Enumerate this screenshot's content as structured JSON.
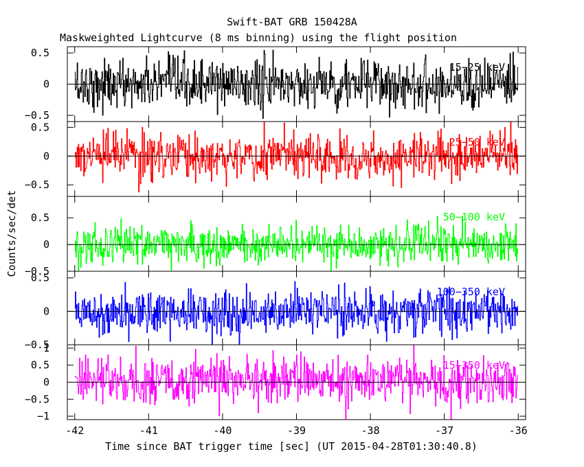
{
  "chart_data": {
    "type": "line",
    "title": "Swift-BAT GRB 150428A",
    "subtitle": "Maskweighted Lightcurve (8 ms binning) using the flight position",
    "xlabel": "Time since BAT trigger time [sec] (UT 2015-04-28T01:30:40.8)",
    "ylabel": "Counts/sec/det",
    "xlim": [
      -42.1,
      -35.9
    ],
    "x_ticks": [
      -42,
      -41,
      -40,
      -39,
      -38,
      -37,
      -36
    ],
    "x_tick_labels": [
      "-42",
      "-41",
      "-40",
      "-39",
      "-38",
      "-37",
      "-36"
    ],
    "bin_width_sec": 0.008,
    "x_start": -42.0,
    "x_end": -36.0,
    "panels": [
      {
        "name": "15-25 keV",
        "label": "15−25 keV",
        "color": "#000000",
        "ylim": [
          -0.6,
          0.6
        ],
        "y_ticks": [
          -0.5,
          0,
          0.5
        ],
        "y_tick_labels": [
          "−0.5",
          "0",
          "0.5"
        ],
        "noise_amplitude": 0.2,
        "mean": 0.0
      },
      {
        "name": "25-50 keV",
        "label": "25−50 keV",
        "color": "#ff0000",
        "ylim": [
          -0.7,
          0.6
        ],
        "y_ticks": [
          -0.5,
          0,
          0.5
        ],
        "y_tick_labels": [
          "−0.5",
          "0",
          "0.5"
        ],
        "noise_amplitude": 0.2,
        "mean": 0.0
      },
      {
        "name": "50-100 keV",
        "label": "50−100 keV",
        "color": "#00ff00",
        "ylim": [
          -0.5,
          0.9
        ],
        "y_ticks": [
          -0.5,
          0,
          0.5
        ],
        "y_tick_labels": [
          "−0.5",
          "0",
          "0.5"
        ],
        "noise_amplitude": 0.18,
        "mean": 0.0
      },
      {
        "name": "100-350 keV",
        "label": "100−350 keV",
        "color": "#0000ff",
        "ylim": [
          -0.5,
          0.6
        ],
        "y_ticks": [
          -0.5,
          0,
          0.5
        ],
        "y_tick_labels": [
          "−0.5",
          "0",
          "0.5"
        ],
        "noise_amplitude": 0.17,
        "mean": 0.0
      },
      {
        "name": "15-350 keV",
        "label": "15−350 keV",
        "color": "#ff00ff",
        "ylim": [
          -1.1,
          1.1
        ],
        "y_ticks": [
          -1,
          -0.5,
          0,
          0.5,
          1
        ],
        "y_tick_labels": [
          "−1",
          "−0.5",
          "0",
          "0.5",
          "1"
        ],
        "noise_amplitude": 0.35,
        "mean": 0.05
      }
    ]
  }
}
